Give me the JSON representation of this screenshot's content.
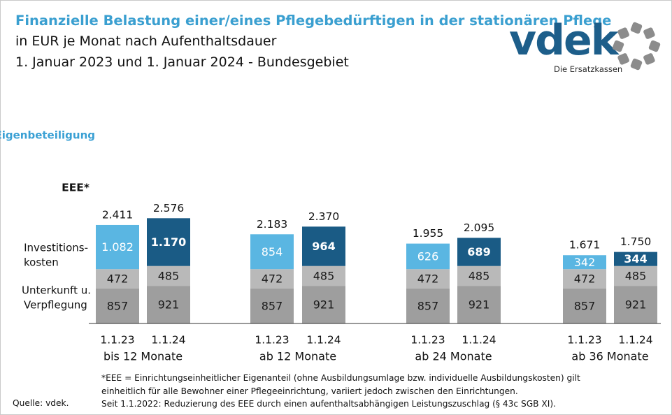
{
  "header": {
    "title": "Finanzielle Belastung einer/eines Pflegebedürftigen in der stationären Pflege",
    "subtitle1": "in EUR je Monat nach Aufenthaltsdauer",
    "subtitle2": "1. Januar 2023 und 1. Januar 2024 - Bundesgebiet"
  },
  "logo": {
    "text": "vdek",
    "tagline": "Die Ersatzkassen"
  },
  "colors": {
    "eee_2023": "#5ab6e2",
    "eee_2024": "#1a5b85",
    "invest": "#b9b9b9",
    "unterkunft": "#9e9e9e",
    "eigen_label": "#3aa0d4",
    "logo_blue": "#1d5e8a",
    "logo_gray": "#8c8c8c"
  },
  "chart_data": {
    "type": "bar",
    "stacked": true,
    "groups": [
      "bis 12 Monate",
      "ab 12 Monate",
      "ab 24 Monate",
      "ab 36 Monate"
    ],
    "bar_labels": [
      "1.1.23",
      "1.1.24"
    ],
    "row_labels": {
      "eigen": "Eigenbeteiligung",
      "eee": "EEE*",
      "invest": "Investitions-\nkosten",
      "unterkunft": "Unterkunft u.\nVerpflegung"
    },
    "bars": [
      {
        "group": "bis 12 Monate",
        "date": "1.1.23",
        "unterkunft": 857,
        "invest": 472,
        "eee": 1082,
        "total": "2.411",
        "eee_label": "1.082"
      },
      {
        "group": "bis 12 Monate",
        "date": "1.1.24",
        "unterkunft": 921,
        "invest": 485,
        "eee": 1170,
        "total": "2.576",
        "eee_label": "1.170"
      },
      {
        "group": "ab 12 Monate",
        "date": "1.1.23",
        "unterkunft": 857,
        "invest": 472,
        "eee": 854,
        "total": "2.183",
        "eee_label": "854"
      },
      {
        "group": "ab 12 Monate",
        "date": "1.1.24",
        "unterkunft": 921,
        "invest": 485,
        "eee": 964,
        "total": "2.370",
        "eee_label": "964"
      },
      {
        "group": "ab 24 Monate",
        "date": "1.1.23",
        "unterkunft": 857,
        "invest": 472,
        "eee": 626,
        "total": "1.955",
        "eee_label": "626"
      },
      {
        "group": "ab 24 Monate",
        "date": "1.1.24",
        "unterkunft": 921,
        "invest": 485,
        "eee": 689,
        "total": "2.095",
        "eee_label": "689"
      },
      {
        "group": "ab 36 Monate",
        "date": "1.1.23",
        "unterkunft": 857,
        "invest": 472,
        "eee": 342,
        "total": "1.671",
        "eee_label": "342"
      },
      {
        "group": "ab 36 Monate",
        "date": "1.1.24",
        "unterkunft": 921,
        "invest": 485,
        "eee": 344,
        "total": "1.750",
        "eee_label": "344"
      }
    ]
  },
  "footnote": {
    "line1": "*EEE = Einrichtungseinheitlicher  Eigenanteil (ohne Ausbildungsumlage bzw. individuelle Ausbildungskosten) gilt",
    "line2": " einheitlich für alle Bewohner einer Pflegeeinrichtung, variiert jedoch zwischen den Einrichtungen.",
    "line3": " Seit 1.1.2022: Reduzierung des EEE durch einen aufenthaltsabhängigen Leistungszuschlag (§ 43c SGB XI)."
  },
  "source": "Quelle: vdek."
}
